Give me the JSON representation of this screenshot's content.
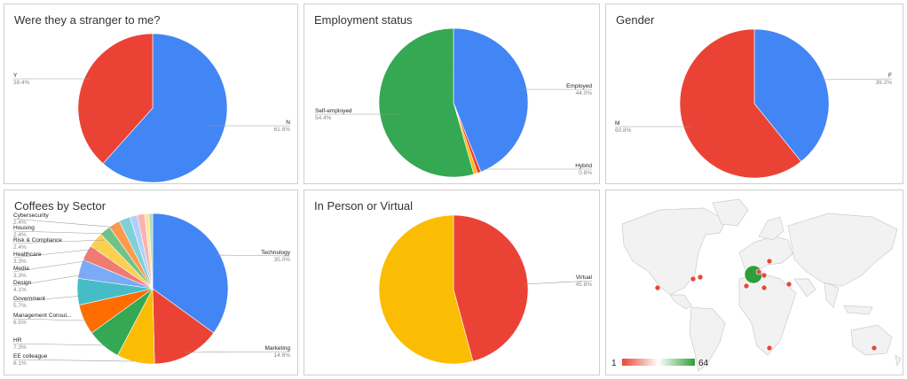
{
  "colors": {
    "blue": "#4285f4",
    "red": "#ea4335",
    "yellow": "#fbbc04",
    "green": "#34a853",
    "orange": "#ff6d01",
    "teal": "#46bdc6",
    "lightblue": "#7baaf7",
    "salmon": "#f07b72",
    "lightyellow": "#fcd04f",
    "lightgreen": "#71c287",
    "lightorange": "#ff994d",
    "lightteal": "#7ed1d7",
    "paleblue": "#b3cefb",
    "pink": "#f7b4ae",
    "paleyellow": "#fde49b",
    "palegreen": "#aedcba"
  },
  "chart_data": [
    {
      "type": "pie",
      "title": "Were they a stranger to me?",
      "slices": [
        {
          "label": "N",
          "value": 61.6,
          "pct": "61.6%",
          "color": "#4285f4"
        },
        {
          "label": "Y",
          "value": 38.4,
          "pct": "38.4%",
          "color": "#ea4335"
        }
      ]
    },
    {
      "type": "pie",
      "title": "Employment status",
      "slices": [
        {
          "label": "Employed",
          "value": 44.0,
          "pct": "44.0%",
          "color": "#4285f4"
        },
        {
          "label": "",
          "value": 0.8,
          "pct": "",
          "color": "#ea4335"
        },
        {
          "label": "Hybrid",
          "value": 0.8,
          "pct": "0.8%",
          "color": "#fbbc04"
        },
        {
          "label": "Self-employed",
          "value": 54.4,
          "pct": "54.4%",
          "color": "#34a853"
        }
      ]
    },
    {
      "type": "pie",
      "title": "Gender",
      "slices": [
        {
          "label": "F",
          "value": 39.2,
          "pct": "39.2%",
          "color": "#4285f4"
        },
        {
          "label": "M",
          "value": 60.8,
          "pct": "60.8%",
          "color": "#ea4335"
        }
      ]
    },
    {
      "type": "pie",
      "title": "Coffees by Sector",
      "slices": [
        {
          "label": "Technology",
          "value": 35.0,
          "pct": "35.0%",
          "color": "#4285f4"
        },
        {
          "label": "Marketing",
          "value": 14.6,
          "pct": "14.6%",
          "color": "#ea4335"
        },
        {
          "label": "EE colleague",
          "value": 8.1,
          "pct": "8.1%",
          "color": "#fbbc04"
        },
        {
          "label": "HR",
          "value": 7.3,
          "pct": "7.3%",
          "color": "#34a853"
        },
        {
          "label": "Management Consul...",
          "value": 6.5,
          "pct": "6.5%",
          "color": "#ff6d01"
        },
        {
          "label": "Government",
          "value": 5.7,
          "pct": "5.7%",
          "color": "#46bdc6"
        },
        {
          "label": "Design",
          "value": 4.1,
          "pct": "4.1%",
          "color": "#7baaf7"
        },
        {
          "label": "Media",
          "value": 3.3,
          "pct": "3.3%",
          "color": "#f07b72"
        },
        {
          "label": "Healthcare",
          "value": 3.3,
          "pct": "3.3%",
          "color": "#fcd04f"
        },
        {
          "label": "Risk & Compliance",
          "value": 2.4,
          "pct": "2.4%",
          "color": "#71c287"
        },
        {
          "label": "Housing",
          "value": 2.4,
          "pct": "2.4%",
          "color": "#ff994d"
        },
        {
          "label": "Cybersecurity",
          "value": 2.4,
          "pct": "2.4%",
          "color": "#7ed1d7"
        },
        {
          "label": "",
          "value": 1.6,
          "pct": "",
          "color": "#b3cefb"
        },
        {
          "label": "",
          "value": 1.6,
          "pct": "",
          "color": "#f7b4ae"
        },
        {
          "label": "",
          "value": 0.9,
          "pct": "",
          "color": "#fde49b"
        },
        {
          "label": "",
          "value": 0.8,
          "pct": "",
          "color": "#aedcba"
        }
      ]
    },
    {
      "type": "pie",
      "title": "In Person or Virtual",
      "slices": [
        {
          "label": "Virtual",
          "value": 45.8,
          "pct": "45.8%",
          "color": "#ea4335"
        },
        {
          "label": "",
          "value": 54.2,
          "pct": "",
          "color": "#fbbc04"
        }
      ]
    },
    {
      "type": "geo",
      "title": "",
      "legend": {
        "min": 1,
        "max": 64,
        "min_color": "#e8483a",
        "max_color": "#2e9e3a"
      },
      "points": [
        {
          "region": "UK",
          "value": 64
        },
        {
          "region": "Netherlands",
          "value": 3
        },
        {
          "region": "Germany",
          "value": 2
        },
        {
          "region": "Scandinavia",
          "value": 1
        },
        {
          "region": "Poland",
          "value": 1
        },
        {
          "region": "Portugal",
          "value": 1
        },
        {
          "region": "Italy",
          "value": 1
        },
        {
          "region": "California",
          "value": 1
        },
        {
          "region": "US Midwest",
          "value": 1
        },
        {
          "region": "US East",
          "value": 2
        },
        {
          "region": "South Africa",
          "value": 1
        },
        {
          "region": "Australia",
          "value": 1
        }
      ]
    }
  ]
}
